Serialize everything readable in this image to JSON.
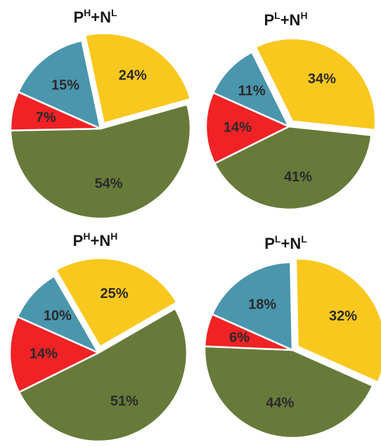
{
  "chart_data": [
    {
      "type": "pie",
      "title": {
        "a": "P",
        "a_sup": "H",
        "plus": "+",
        "b": "N",
        "b_sup": "L"
      },
      "slices": [
        {
          "label": "15%",
          "value": 15,
          "color": "#4a96ad",
          "exploded": false
        },
        {
          "label": "24%",
          "value": 24,
          "color": "#f9c81f",
          "exploded": true
        },
        {
          "label": "54%",
          "value": 54,
          "color": "#677a3a",
          "exploded": false
        },
        {
          "label": "7%",
          "value": 7,
          "color": "#f02225",
          "exploded": false
        }
      ]
    },
    {
      "type": "pie",
      "title": {
        "a": "P",
        "a_sup": "L",
        "plus": "+",
        "b": "N",
        "b_sup": "H"
      },
      "slices": [
        {
          "label": "11%",
          "value": 11,
          "color": "#4a96ad",
          "exploded": false
        },
        {
          "label": "34%",
          "value": 34,
          "color": "#f9c81f",
          "exploded": true
        },
        {
          "label": "41%",
          "value": 41,
          "color": "#677a3a",
          "exploded": false
        },
        {
          "label": "14%",
          "value": 14,
          "color": "#f02225",
          "exploded": false
        }
      ]
    },
    {
      "type": "pie",
      "title": {
        "a": "P",
        "a_sup": "H",
        "plus": "+",
        "b": "N",
        "b_sup": "H"
      },
      "slices": [
        {
          "label": "10%",
          "value": 10,
          "color": "#4a96ad",
          "exploded": false
        },
        {
          "label": "25%",
          "value": 25,
          "color": "#f9c81f",
          "exploded": true
        },
        {
          "label": "51%",
          "value": 51,
          "color": "#677a3a",
          "exploded": false
        },
        {
          "label": "14%",
          "value": 14,
          "color": "#f02225",
          "exploded": false
        }
      ]
    },
    {
      "type": "pie",
      "title": {
        "a": "P",
        "a_sup": "L",
        "plus": "+",
        "b": "N",
        "b_sup": "L"
      },
      "slices": [
        {
          "label": "18%",
          "value": 18,
          "color": "#4a96ad",
          "exploded": false
        },
        {
          "label": "32%",
          "value": 32,
          "color": "#f9c81f",
          "exploded": true
        },
        {
          "label": "44%",
          "value": 44,
          "color": "#677a3a",
          "exploded": false
        },
        {
          "label": "6%",
          "value": 6,
          "color": "#f02225",
          "exploded": false
        }
      ]
    }
  ]
}
